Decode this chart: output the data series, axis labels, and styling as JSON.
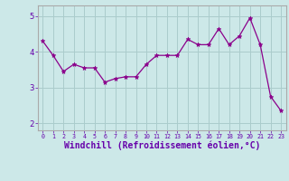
{
  "x": [
    0,
    1,
    2,
    3,
    4,
    5,
    6,
    7,
    8,
    9,
    10,
    11,
    12,
    13,
    14,
    15,
    16,
    17,
    18,
    19,
    20,
    21,
    22,
    23
  ],
  "y": [
    4.3,
    3.9,
    3.45,
    3.65,
    3.55,
    3.55,
    3.15,
    3.25,
    3.3,
    3.3,
    3.65,
    3.9,
    3.9,
    3.9,
    4.35,
    4.2,
    4.2,
    4.65,
    4.2,
    4.45,
    4.95,
    4.2,
    2.75,
    2.35
  ],
  "line_color": "#8B008B",
  "marker": "*",
  "marker_size": 3.5,
  "background_color": "#cce8e8",
  "grid_color": "#aacccc",
  "xlabel": "Windchill (Refroidissement éolien,°C)",
  "xlabel_fontsize": 7,
  "ylabel_ticks": [
    2,
    3,
    4,
    5
  ],
  "xlim": [
    -0.5,
    23.5
  ],
  "ylim": [
    1.8,
    5.3
  ]
}
